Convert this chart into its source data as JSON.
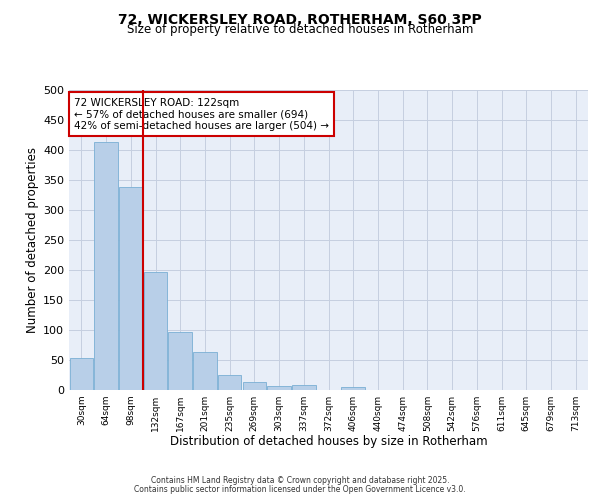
{
  "title": "72, WICKERSLEY ROAD, ROTHERHAM, S60 3PP",
  "subtitle": "Size of property relative to detached houses in Rotherham",
  "xlabel": "Distribution of detached houses by size in Rotherham",
  "ylabel": "Number of detached properties",
  "categories": [
    "30sqm",
    "64sqm",
    "98sqm",
    "132sqm",
    "167sqm",
    "201sqm",
    "235sqm",
    "269sqm",
    "303sqm",
    "337sqm",
    "372sqm",
    "406sqm",
    "440sqm",
    "474sqm",
    "508sqm",
    "542sqm",
    "576sqm",
    "611sqm",
    "645sqm",
    "679sqm",
    "713sqm"
  ],
  "values": [
    54,
    413,
    339,
    196,
    96,
    63,
    25,
    13,
    7,
    9,
    0,
    5,
    0,
    0,
    0,
    0,
    0,
    0,
    0,
    0,
    0
  ],
  "bar_color": "#b8cfe8",
  "bar_edge_color": "#7aafd4",
  "vline_x": 2.5,
  "vline_color": "#cc0000",
  "annotation_text": "72 WICKERSLEY ROAD: 122sqm\n← 57% of detached houses are smaller (694)\n42% of semi-detached houses are larger (504) →",
  "annotation_box_color": "#ffffff",
  "annotation_box_edge": "#cc0000",
  "ylim": [
    0,
    500
  ],
  "yticks": [
    0,
    50,
    100,
    150,
    200,
    250,
    300,
    350,
    400,
    450,
    500
  ],
  "background_color": "#e8eef8",
  "grid_color": "#c5cfe0",
  "footer_line1": "Contains HM Land Registry data © Crown copyright and database right 2025.",
  "footer_line2": "Contains public sector information licensed under the Open Government Licence v3.0."
}
